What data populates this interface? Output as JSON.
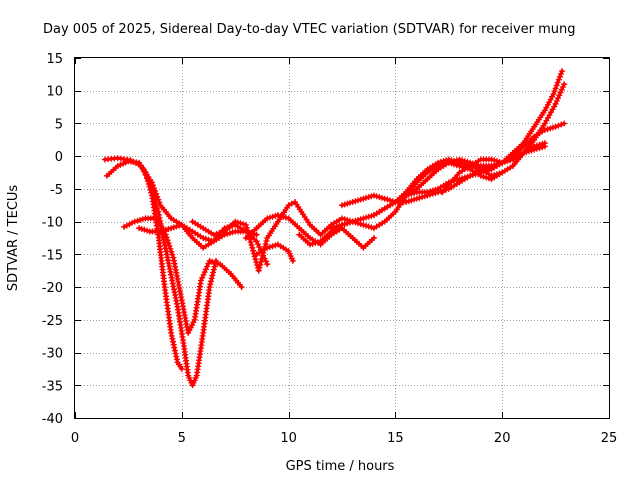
{
  "chart_data": {
    "type": "scatter",
    "title": "Day 005 of 2025, Sidereal Day-to-day VTEC variation (SDTVAR) for receiver mung",
    "xlabel": "GPS time / hours",
    "ylabel": "SDTVAR / TECUs",
    "xlim": [
      0,
      25
    ],
    "ylim": [
      -40,
      15
    ],
    "xticks": [
      0,
      5,
      10,
      15,
      20,
      25
    ],
    "yticks": [
      15,
      10,
      5,
      0,
      -5,
      -10,
      -15,
      -20,
      -25,
      -30,
      -35,
      -40
    ],
    "grid": true,
    "marker": "plus",
    "color": "#ff0000",
    "series": [
      {
        "x": [
          1.5,
          2.0,
          2.5,
          3.0,
          3.3,
          3.6,
          3.9,
          4.2,
          4.5,
          4.8,
          5.0
        ],
        "y": [
          -3.0,
          -1.5,
          -0.8,
          -1.0,
          -2.5,
          -6.0,
          -12.0,
          -20.0,
          -27.0,
          -31.5,
          -32.5
        ]
      },
      {
        "x": [
          1.4,
          2.0,
          2.6,
          3.1,
          3.5,
          3.9,
          4.3,
          4.8,
          5.1,
          5.3,
          5.5,
          5.7,
          6.0,
          6.3,
          6.6
        ],
        "y": [
          -0.5,
          -0.3,
          -0.6,
          -1.5,
          -4.0,
          -8.5,
          -15.0,
          -23.0,
          -29.0,
          -33.5,
          -35.0,
          -33.5,
          -27.0,
          -20.0,
          -16.0
        ]
      },
      {
        "x": [
          2.3,
          2.8,
          3.3,
          3.8,
          4.2,
          4.6,
          5.0,
          5.3,
          5.6,
          5.9,
          6.3,
          6.8,
          7.3,
          7.8
        ],
        "y": [
          -10.8,
          -10.0,
          -9.5,
          -9.5,
          -11.5,
          -15.5,
          -22.0,
          -27.0,
          -25.0,
          -19.0,
          -16.0,
          -16.5,
          -18.0,
          -20.0
        ]
      },
      {
        "x": [
          3.2,
          3.6,
          4.0,
          4.5,
          5.0,
          5.5,
          6.0,
          6.5,
          7.0,
          7.5,
          8.0,
          8.5,
          9.0
        ],
        "y": [
          -2.0,
          -4.0,
          -7.5,
          -9.5,
          -10.5,
          -11.5,
          -12.5,
          -13.0,
          -12.0,
          -11.5,
          -11.5,
          -13.0,
          -16.5
        ]
      },
      {
        "x": [
          3.0,
          3.5,
          4.0,
          4.5,
          5.0,
          5.5,
          6.0,
          6.5,
          7.0,
          7.5,
          8.0,
          8.5
        ],
        "y": [
          -11.0,
          -11.5,
          -11.5,
          -11.0,
          -10.5,
          -12.5,
          -14.0,
          -13.0,
          -11.0,
          -10.5,
          -11.5,
          -12.0
        ]
      },
      {
        "x": [
          5.5,
          6.0,
          6.5,
          7.0,
          7.5,
          8.0,
          8.3,
          8.6,
          9.0,
          9.5,
          10.0,
          10.3,
          10.6,
          11.0,
          11.5,
          12.0,
          12.5,
          13.0
        ],
        "y": [
          -10.0,
          -11.0,
          -12.0,
          -11.5,
          -10.0,
          -10.5,
          -14.0,
          -17.5,
          -12.5,
          -10.0,
          -7.5,
          -7.0,
          -8.5,
          -10.5,
          -12.0,
          -10.5,
          -9.5,
          -10.0
        ]
      },
      {
        "x": [
          8.5,
          9.0,
          9.5,
          10.0,
          10.2
        ],
        "y": [
          -15.0,
          -14.0,
          -13.5,
          -14.5,
          -16.0
        ]
      },
      {
        "x": [
          8.0,
          8.5,
          9.0,
          9.5,
          10.0,
          10.5,
          11.0,
          11.5,
          12.0,
          12.5,
          13.0,
          13.5,
          14.0
        ],
        "y": [
          -12.5,
          -11.0,
          -9.5,
          -9.0,
          -9.5,
          -11.0,
          -12.5,
          -13.5,
          -12.0,
          -11.0,
          -12.5,
          -14.0,
          -12.5
        ]
      },
      {
        "x": [
          10.5,
          11.0,
          11.5,
          12.0,
          12.5,
          13.0,
          13.5,
          14.0,
          14.5,
          15.0,
          15.5,
          16.0,
          16.5,
          17.0,
          17.5,
          18.0,
          18.5,
          19.0,
          19.5,
          20.0,
          20.5,
          21.0,
          21.5,
          22.0,
          22.4,
          22.8
        ],
        "y": [
          -12.0,
          -13.5,
          -13.0,
          -11.5,
          -10.5,
          -10.0,
          -9.5,
          -9.0,
          -8.0,
          -7.0,
          -6.0,
          -5.5,
          -5.5,
          -5.0,
          -4.0,
          -3.5,
          -3.0,
          -2.5,
          -2.0,
          -1.0,
          0.5,
          2.0,
          4.5,
          7.0,
          9.5,
          13.0
        ]
      },
      {
        "x": [
          12.0,
          12.5,
          13.0,
          13.5,
          14.0,
          14.5,
          15.0,
          15.5,
          16.0,
          16.5,
          17.0,
          17.5,
          18.0,
          18.5,
          19.0,
          19.5,
          20.0,
          20.5,
          21.0,
          21.5,
          22.0,
          22.5,
          22.9
        ],
        "y": [
          -11.0,
          -10.5,
          -10.0,
          -10.5,
          -11.0,
          -10.0,
          -8.5,
          -6.0,
          -4.0,
          -2.5,
          -1.5,
          -1.0,
          -1.5,
          -2.0,
          -3.0,
          -3.5,
          -2.5,
          -1.5,
          0.5,
          2.5,
          5.0,
          8.0,
          11.0
        ]
      },
      {
        "x": [
          12.5,
          13.0,
          13.5,
          14.0,
          14.5,
          15.0,
          15.5,
          16.0,
          16.5,
          17.0,
          17.5,
          18.0,
          18.5,
          19.0,
          19.5,
          20.0,
          20.5,
          21.0,
          21.5,
          22.0,
          22.5,
          22.9
        ],
        "y": [
          -7.5,
          -7.0,
          -6.5,
          -6.0,
          -6.5,
          -7.0,
          -7.0,
          -6.5,
          -6.0,
          -5.5,
          -5.0,
          -4.0,
          -3.0,
          -2.0,
          -1.5,
          -1.0,
          0.0,
          1.5,
          3.0,
          4.0,
          4.5,
          5.0
        ]
      },
      {
        "x": [
          14.0,
          14.5,
          15.0,
          15.5,
          16.0,
          16.5,
          17.0,
          17.5,
          18.0,
          18.5,
          19.0,
          19.5,
          20.0,
          20.5,
          21.0,
          21.5,
          22.0
        ],
        "y": [
          -9.0,
          -8.0,
          -7.0,
          -5.5,
          -3.5,
          -2.0,
          -1.0,
          -0.5,
          -1.0,
          -1.5,
          -0.5,
          -0.5,
          -1.0,
          -0.5,
          0.5,
          1.5,
          2.0
        ]
      },
      {
        "x": [
          15.5,
          16.0,
          16.5,
          17.0,
          17.5,
          18.0,
          18.5,
          19.0,
          19.5,
          20.0,
          20.5,
          21.0,
          21.5,
          22.0
        ],
        "y": [
          -6.0,
          -5.0,
          -3.5,
          -2.0,
          -1.0,
          -0.5,
          -1.0,
          -1.5,
          -1.5,
          -1.0,
          0.0,
          0.5,
          1.0,
          1.5
        ]
      },
      {
        "x": [
          17.2,
          17.6,
          18.0,
          18.5,
          19.0,
          19.5,
          20.0
        ],
        "y": [
          -5.5,
          -4.0,
          -2.5,
          -1.5,
          -2.0,
          -3.0,
          -2.5
        ]
      }
    ]
  }
}
